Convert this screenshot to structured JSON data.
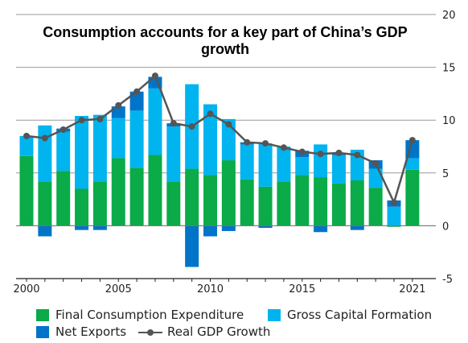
{
  "chart_data": {
    "type": "bar",
    "title": "Consumption accounts for a key part of China’s GDP growth",
    "stacked": true,
    "x": [
      2000,
      2001,
      2002,
      2003,
      2004,
      2005,
      2006,
      2007,
      2008,
      2009,
      2010,
      2011,
      2012,
      2013,
      2014,
      2015,
      2016,
      2017,
      2018,
      2019,
      2020,
      2021
    ],
    "x_ticks": [
      "2000",
      "2005",
      "2010",
      "2015",
      "2021"
    ],
    "y_ticks": [
      "20",
      "15",
      "10",
      "5",
      "0",
      "-5"
    ],
    "ylim": [
      -5,
      20
    ],
    "y_axis_position": "right",
    "grid": "horizontal",
    "legend_position": "bottom",
    "series": [
      {
        "name": "Final Consumption Expenditure",
        "color": "#0aab48",
        "values": [
          6.6,
          4.2,
          5.2,
          3.5,
          4.2,
          6.4,
          5.5,
          6.7,
          4.2,
          5.4,
          4.8,
          6.2,
          4.4,
          3.7,
          4.2,
          4.8,
          4.6,
          4.0,
          4.3,
          3.6,
          -0.1,
          5.3
        ]
      },
      {
        "name": "Gross Capital Formation",
        "color": "#00b4ef",
        "values": [
          1.9,
          5.3,
          3.7,
          6.9,
          6.3,
          3.8,
          5.4,
          6.3,
          5.2,
          8.0,
          6.7,
          3.9,
          3.3,
          4.1,
          3.3,
          1.7,
          3.1,
          2.7,
          2.9,
          1.8,
          1.8,
          1.1
        ]
      },
      {
        "name": "Net Exports",
        "color": "#0074c8",
        "values": [
          0.0,
          -1.0,
          0.3,
          -0.4,
          -0.4,
          1.1,
          1.8,
          1.1,
          0.3,
          -3.9,
          -1.0,
          -0.5,
          0.2,
          -0.2,
          0.0,
          0.6,
          -0.6,
          0.2,
          -0.4,
          0.8,
          0.6,
          1.7
        ]
      },
      {
        "name": "Real GDP Growth",
        "type": "line",
        "color": "#555555",
        "values": [
          8.5,
          8.3,
          9.1,
          10.0,
          10.1,
          11.4,
          12.7,
          14.2,
          9.7,
          9.4,
          10.6,
          9.6,
          7.9,
          7.8,
          7.4,
          7.0,
          6.8,
          6.9,
          6.7,
          5.9,
          2.2,
          8.1
        ]
      }
    ]
  }
}
